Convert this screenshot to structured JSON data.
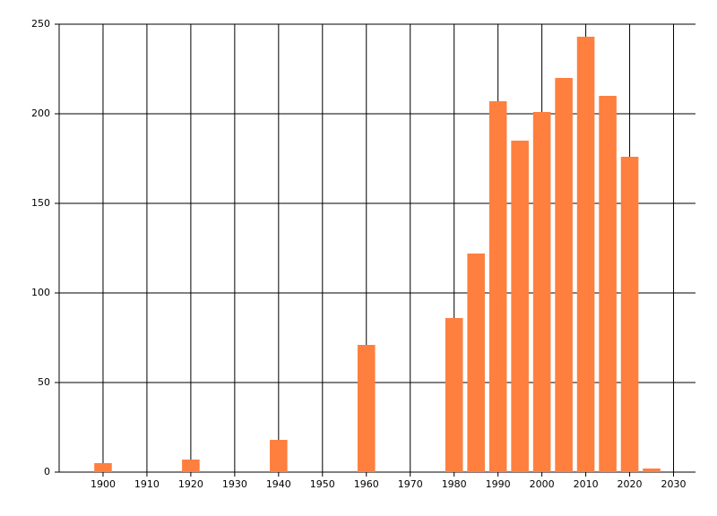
{
  "chart_data": {
    "type": "bar",
    "x": [
      1900,
      1920,
      1940,
      1960,
      1980,
      1985,
      1990,
      1995,
      2000,
      2005,
      2010,
      2015,
      2020,
      2025
    ],
    "values": [
      5,
      7,
      18,
      71,
      86,
      122,
      207,
      185,
      201,
      220,
      243,
      210,
      176,
      2
    ],
    "color": "#ff7f3f",
    "xlim": [
      1890,
      2035
    ],
    "xticks": [
      1900,
      1910,
      1920,
      1930,
      1940,
      1950,
      1960,
      1970,
      1980,
      1990,
      2000,
      2010,
      2020,
      2030
    ],
    "ylim": [
      0,
      250
    ],
    "yticks": [
      0,
      50,
      100,
      150,
      200,
      250
    ],
    "grid": true
  }
}
